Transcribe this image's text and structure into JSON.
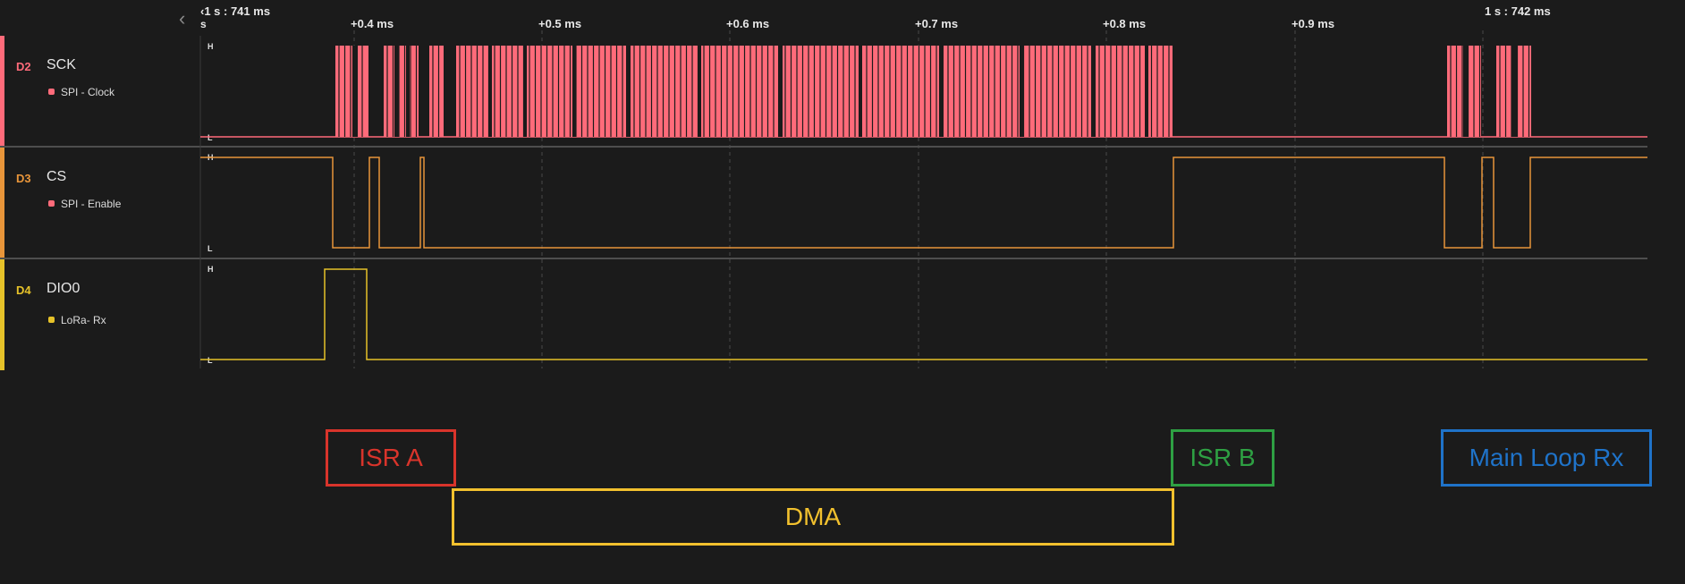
{
  "ruler": {
    "start_label": "‹1 s : 741 ms",
    "start_sub": "s",
    "ticks": [
      "+0.4 ms",
      "+0.5 ms",
      "+0.6 ms",
      "+0.7 ms",
      "+0.8 ms",
      "+0.9 ms"
    ],
    "end_label": "1 s : 742 ms"
  },
  "channels": [
    {
      "id": "D2",
      "name": "SCK",
      "analyzer": "SPI - Clock",
      "color": "#ff6b7a",
      "high": "H",
      "low": "L"
    },
    {
      "id": "D3",
      "name": "CS",
      "analyzer": "SPI - Enable",
      "color": "#e8953a",
      "high": "H",
      "low": "L"
    },
    {
      "id": "D4",
      "name": "DIO0",
      "analyzer": "LoRa- Rx",
      "color": "#e6c229",
      "high": "H",
      "low": "L"
    }
  ],
  "annotations": {
    "isr_a": {
      "label": "ISR A",
      "color": "#d9342b"
    },
    "dma": {
      "label": "DMA",
      "color": "#f2c12e"
    },
    "isr_b": {
      "label": "ISR B",
      "color": "#2ea043"
    },
    "main_loop": {
      "label": "Main Loop Rx",
      "color": "#1f73c9"
    }
  }
}
